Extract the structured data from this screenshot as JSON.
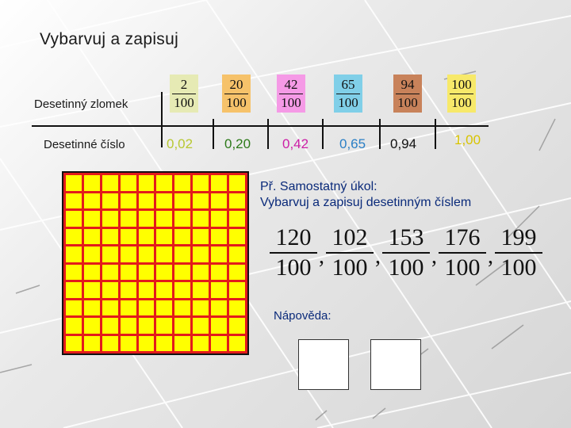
{
  "title": "Vybarvuj a zapisuj",
  "row_labels": {
    "fraction": "Desetinný zlomek",
    "decimal": "Desetinné číslo"
  },
  "fractions": [
    {
      "num": "2",
      "den": "100",
      "color": "#e6eab4"
    },
    {
      "num": "20",
      "den": "100",
      "color": "#f6c26a"
    },
    {
      "num": "42",
      "den": "100",
      "color": "#f59ae6"
    },
    {
      "num": "65",
      "den": "100",
      "color": "#80cfe8"
    },
    {
      "num": "94",
      "den": "100",
      "color": "#c8825a"
    },
    {
      "num": "100",
      "den": "100",
      "color": "#f7e96a"
    }
  ],
  "decimals": [
    {
      "text": "0,02",
      "color": "#b8c832"
    },
    {
      "text": "0,20",
      "color": "#2d7a1a"
    },
    {
      "text": "0,42",
      "color": "#cc1fa6"
    },
    {
      "text": "0,65",
      "color": "#2a7fc6"
    },
    {
      "text": "0,94",
      "color": "#111111"
    },
    {
      "text": "1,00",
      "color": "#d8c400"
    }
  ],
  "task": {
    "line1": "Př. Samostatný úkol:",
    "line2": "Vybarvuj a zapisuj desetinným číslem"
  },
  "task_fractions": [
    {
      "num": "120",
      "den": "100"
    },
    {
      "num": "102",
      "den": "100"
    },
    {
      "num": "153",
      "den": "100"
    },
    {
      "num": "176",
      "den": "100"
    },
    {
      "num": "199",
      "den": "100"
    }
  ],
  "hint": "Nápověda:",
  "colors": {
    "grid_fill": "#ffff00",
    "grid_lines": "#e31b1b",
    "task_text": "#0a2a7a"
  }
}
